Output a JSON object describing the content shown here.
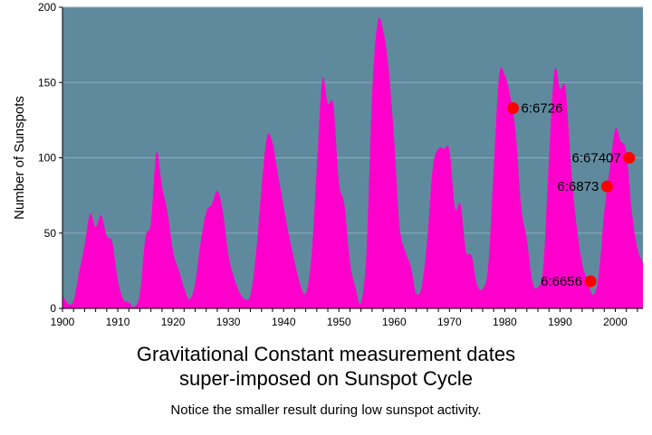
{
  "chart_data": {
    "type": "area",
    "title": "Gravitational Constant measurement dates",
    "title_line2": "super-imposed on Sunspot Cycle",
    "subtitle": "Notice the smaller result during low sunspot activity.",
    "xlabel": "",
    "ylabel": "Number of Sunspots",
    "xlim": [
      1900,
      2005
    ],
    "ylim": [
      0,
      200
    ],
    "x_ticks": [
      1900,
      1910,
      1920,
      1930,
      1940,
      1950,
      1960,
      1970,
      1980,
      1990,
      2000
    ],
    "y_ticks": [
      0,
      50,
      100,
      150,
      200
    ],
    "grid": "horizontal",
    "colors": {
      "plot_bg": "#5f8a9e",
      "area": "#ff00cc",
      "points": "#ff0000",
      "grid": "#8eaab8"
    },
    "series": [
      {
        "x": [
          1900,
          1901,
          1902,
          1903,
          1904,
          1905,
          1906,
          1907,
          1908,
          1909,
          1910,
          1911,
          1912,
          1913,
          1914,
          1915,
          1916,
          1917,
          1918,
          1919,
          1920,
          1921,
          1922,
          1923,
          1924,
          1925,
          1926,
          1927,
          1928,
          1929,
          1930,
          1931,
          1932,
          1933,
          1934,
          1935,
          1936,
          1937,
          1938,
          1939,
          1940,
          1941,
          1942,
          1943,
          1944,
          1945,
          1946,
          1947,
          1948,
          1949,
          1950,
          1951,
          1952,
          1953,
          1954,
          1955,
          1956,
          1957,
          1958,
          1959,
          1960,
          1961,
          1962,
          1963,
          1964,
          1965,
          1966,
          1967,
          1968,
          1969,
          1970,
          1971,
          1972,
          1973,
          1974,
          1975,
          1976,
          1977,
          1978,
          1979,
          1980,
          1981,
          1982,
          1983,
          1984,
          1985,
          1986,
          1987,
          1988,
          1989,
          1990,
          1991,
          1992,
          1993,
          1994,
          1995,
          1996,
          1997,
          1998,
          1999,
          2000,
          2001,
          2002,
          2003,
          2004,
          2005
        ],
        "values": [
          9,
          3,
          5,
          24,
          42,
          63,
          54,
          62,
          48,
          44,
          19,
          6,
          4,
          1,
          10,
          47,
          57,
          104,
          81,
          64,
          38,
          26,
          14,
          6,
          17,
          44,
          64,
          69,
          78,
          65,
          36,
          21,
          11,
          6,
          9,
          36,
          80,
          114,
          110,
          89,
          68,
          48,
          31,
          16,
          10,
          33,
          93,
          152,
          136,
          135,
          84,
          69,
          31,
          14,
          4,
          38,
          142,
          190,
          185,
          159,
          112,
          54,
          38,
          28,
          10,
          15,
          47,
          94,
          106,
          106,
          105,
          67,
          69,
          38,
          35,
          16,
          13,
          28,
          93,
          155,
          155,
          141,
          116,
          67,
          46,
          18,
          14,
          29,
          100,
          158,
          146,
          146,
          94,
          55,
          30,
          18,
          9,
          22,
          64,
          93,
          119,
          111,
          104,
          64,
          40,
          30
        ]
      }
    ],
    "points": [
      {
        "label": "6:6726",
        "x": 1981.5,
        "y": 133
      },
      {
        "label": "6:67407",
        "x": 2002.5,
        "y": 100
      },
      {
        "label": "6:6873",
        "x": 1998.5,
        "y": 81
      },
      {
        "label": "6:6656",
        "x": 1995.5,
        "y": 18
      }
    ]
  }
}
